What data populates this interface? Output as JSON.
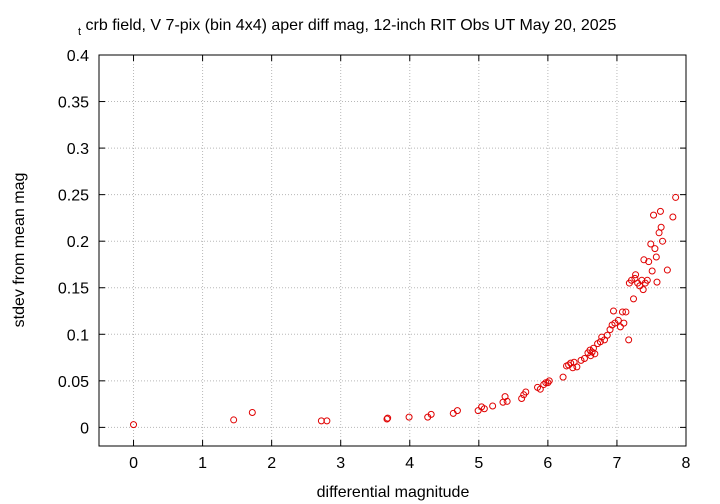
{
  "chart_data": {
    "type": "scatter",
    "title_subscript": "t",
    "title": "crb field, V 7-pix (bin 4x4) aper diff mag,  12-inch RIT Obs UT May 20, 2025",
    "xlabel": "differential magnitude",
    "ylabel": "stdev from mean mag",
    "xlim": [
      -0.5,
      8
    ],
    "ylim": [
      -0.02,
      0.4
    ],
    "x_ticks": [
      0,
      1,
      2,
      3,
      4,
      5,
      6,
      7,
      8
    ],
    "y_ticks": [
      0,
      0.05,
      0.1,
      0.15,
      0.2,
      0.25,
      0.3,
      0.35,
      0.4
    ],
    "x_tick_labels": [
      "0",
      "1",
      "2",
      "3",
      "4",
      "5",
      "6",
      "7",
      "8"
    ],
    "y_tick_labels": [
      "0",
      "0.05",
      "0.1",
      "0.15",
      "0.2",
      "0.25",
      "0.3",
      "0.35",
      "0.4"
    ],
    "grid": true,
    "marker": "open-circle",
    "color": "#e00000",
    "points": [
      [
        0.0,
        0.003
      ],
      [
        1.45,
        0.008
      ],
      [
        1.72,
        0.016
      ],
      [
        2.72,
        0.007
      ],
      [
        2.8,
        0.007
      ],
      [
        3.67,
        0.009
      ],
      [
        3.68,
        0.01
      ],
      [
        3.99,
        0.011
      ],
      [
        4.26,
        0.011
      ],
      [
        4.31,
        0.014
      ],
      [
        4.63,
        0.015
      ],
      [
        4.69,
        0.018
      ],
      [
        4.99,
        0.018
      ],
      [
        5.04,
        0.022
      ],
      [
        5.08,
        0.02
      ],
      [
        5.2,
        0.023
      ],
      [
        5.35,
        0.027
      ],
      [
        5.38,
        0.033
      ],
      [
        5.41,
        0.028
      ],
      [
        5.62,
        0.031
      ],
      [
        5.65,
        0.035
      ],
      [
        5.68,
        0.038
      ],
      [
        5.85,
        0.043
      ],
      [
        5.89,
        0.041
      ],
      [
        5.94,
        0.046
      ],
      [
        5.97,
        0.048
      ],
      [
        6.0,
        0.048
      ],
      [
        6.02,
        0.05
      ],
      [
        6.22,
        0.054
      ],
      [
        6.27,
        0.066
      ],
      [
        6.3,
        0.067
      ],
      [
        6.33,
        0.069
      ],
      [
        6.36,
        0.064
      ],
      [
        6.38,
        0.07
      ],
      [
        6.42,
        0.065
      ],
      [
        6.48,
        0.072
      ],
      [
        6.53,
        0.074
      ],
      [
        6.58,
        0.08
      ],
      [
        6.61,
        0.083
      ],
      [
        6.62,
        0.077
      ],
      [
        6.64,
        0.081
      ],
      [
        6.66,
        0.085
      ],
      [
        6.68,
        0.079
      ],
      [
        6.72,
        0.09
      ],
      [
        6.76,
        0.092
      ],
      [
        6.78,
        0.097
      ],
      [
        6.82,
        0.094
      ],
      [
        6.86,
        0.099
      ],
      [
        6.9,
        0.105
      ],
      [
        6.93,
        0.11
      ],
      [
        6.95,
        0.125
      ],
      [
        6.97,
        0.112
      ],
      [
        7.02,
        0.115
      ],
      [
        7.05,
        0.108
      ],
      [
        7.08,
        0.124
      ],
      [
        7.1,
        0.112
      ],
      [
        7.13,
        0.124
      ],
      [
        7.17,
        0.094
      ],
      [
        7.18,
        0.155
      ],
      [
        7.21,
        0.158
      ],
      [
        7.24,
        0.138
      ],
      [
        7.26,
        0.16
      ],
      [
        7.27,
        0.164
      ],
      [
        7.3,
        0.155
      ],
      [
        7.33,
        0.152
      ],
      [
        7.36,
        0.158
      ],
      [
        7.38,
        0.148
      ],
      [
        7.39,
        0.18
      ],
      [
        7.41,
        0.155
      ],
      [
        7.44,
        0.158
      ],
      [
        7.46,
        0.178
      ],
      [
        7.49,
        0.197
      ],
      [
        7.51,
        0.168
      ],
      [
        7.53,
        0.228
      ],
      [
        7.55,
        0.192
      ],
      [
        7.57,
        0.183
      ],
      [
        7.58,
        0.156
      ],
      [
        7.61,
        0.209
      ],
      [
        7.63,
        0.232
      ],
      [
        7.64,
        0.215
      ],
      [
        7.66,
        0.2
      ],
      [
        7.73,
        0.169
      ],
      [
        7.81,
        0.226
      ],
      [
        7.85,
        0.247
      ]
    ]
  }
}
